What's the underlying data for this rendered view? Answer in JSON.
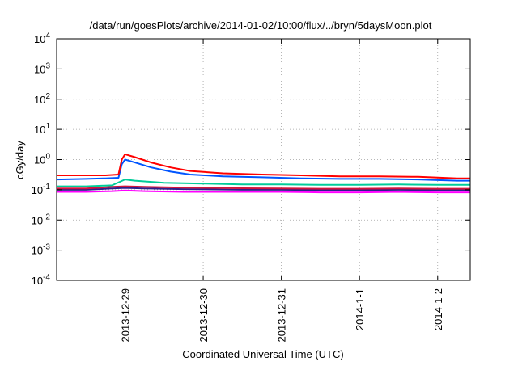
{
  "chart_data": {
    "type": "line",
    "title": "/data/run/goesPlots/archive/2014-01-02/10:00/flux/../bryn/5daysMoon.plot",
    "xlabel": "Coordinated Universal Time (UTC)",
    "ylabel": "cGy/day",
    "y_scale": "log",
    "ylim": [
      0.0001,
      10000
    ],
    "xlim": [
      "2013-12-28 03:00",
      "2014-01-02 10:00"
    ],
    "x_ticks": [
      {
        "value": "2013-12-29 00:00",
        "label": "2013-12-29"
      },
      {
        "value": "2013-12-30 00:00",
        "label": "2013-12-30"
      },
      {
        "value": "2013-12-31 00:00",
        "label": "2013-12-31"
      },
      {
        "value": "2014-01-01 00:00",
        "label": "2014-1-1"
      },
      {
        "value": "2014-01-02 00:00",
        "label": "2014-1-2"
      }
    ],
    "y_ticks": [
      {
        "value": 0.0001,
        "base": "10",
        "exp": "-4"
      },
      {
        "value": 0.001,
        "base": "10",
        "exp": "-3"
      },
      {
        "value": 0.01,
        "base": "10",
        "exp": "-2"
      },
      {
        "value": 0.1,
        "base": "10",
        "exp": "-1"
      },
      {
        "value": 1,
        "base": "10",
        "exp": "0"
      },
      {
        "value": 10,
        "base": "10",
        "exp": "1"
      },
      {
        "value": 100,
        "base": "10",
        "exp": "2"
      },
      {
        "value": 1000,
        "base": "10",
        "exp": "3"
      },
      {
        "value": 10000,
        "base": "10",
        "exp": "4"
      }
    ],
    "grid": true,
    "legend": false,
    "series": [
      {
        "color": "#ff00ff",
        "points": [
          [
            "2013-12-28 03:00",
            0.085
          ],
          [
            "2013-12-28 12:00",
            0.085
          ],
          [
            "2013-12-28 20:00",
            0.09
          ],
          [
            "2013-12-29 00:00",
            0.095
          ],
          [
            "2013-12-29 06:00",
            0.09
          ],
          [
            "2013-12-29 18:00",
            0.085
          ],
          [
            "2013-12-30 12:00",
            0.085
          ],
          [
            "2013-12-31 00:00",
            0.085
          ],
          [
            "2013-12-31 12:00",
            0.082
          ],
          [
            "2014-01-01 00:00",
            0.082
          ],
          [
            "2014-01-01 12:00",
            0.085
          ],
          [
            "2014-01-02 00:00",
            0.082
          ],
          [
            "2014-01-02 10:00",
            0.082
          ]
        ]
      },
      {
        "color": "#2d1e8c",
        "points": [
          [
            "2013-12-28 03:00",
            0.1
          ],
          [
            "2013-12-28 12:00",
            0.1
          ],
          [
            "2013-12-28 20:00",
            0.11
          ],
          [
            "2013-12-29 00:00",
            0.115
          ],
          [
            "2013-12-29 06:00",
            0.11
          ],
          [
            "2013-12-29 18:00",
            0.105
          ],
          [
            "2013-12-30 12:00",
            0.1
          ],
          [
            "2013-12-31 00:00",
            0.1
          ],
          [
            "2013-12-31 12:00",
            0.098
          ],
          [
            "2014-01-01 00:00",
            0.098
          ],
          [
            "2014-01-01 12:00",
            0.1
          ],
          [
            "2014-01-02 00:00",
            0.098
          ],
          [
            "2014-01-02 10:00",
            0.098
          ]
        ]
      },
      {
        "color": "#d2143c",
        "points": [
          [
            "2013-12-28 03:00",
            0.11
          ],
          [
            "2013-12-28 12:00",
            0.11
          ],
          [
            "2013-12-28 20:00",
            0.125
          ],
          [
            "2013-12-29 00:00",
            0.13
          ],
          [
            "2013-12-29 06:00",
            0.125
          ],
          [
            "2013-12-29 18:00",
            0.118
          ],
          [
            "2013-12-30 12:00",
            0.112
          ],
          [
            "2013-12-31 00:00",
            0.11
          ],
          [
            "2013-12-31 12:00",
            0.108
          ],
          [
            "2014-01-01 00:00",
            0.108
          ],
          [
            "2014-01-01 12:00",
            0.11
          ],
          [
            "2014-01-02 00:00",
            0.108
          ],
          [
            "2014-01-02 10:00",
            0.108
          ]
        ]
      },
      {
        "color": "#00cc99",
        "points": [
          [
            "2013-12-28 03:00",
            0.13
          ],
          [
            "2013-12-28 12:00",
            0.13
          ],
          [
            "2013-12-28 20:00",
            0.14
          ],
          [
            "2013-12-29 00:00",
            0.22
          ],
          [
            "2013-12-29 03:00",
            0.2
          ],
          [
            "2013-12-29 12:00",
            0.17
          ],
          [
            "2013-12-30 00:00",
            0.16
          ],
          [
            "2013-12-30 12:00",
            0.15
          ],
          [
            "2013-12-31 00:00",
            0.15
          ],
          [
            "2013-12-31 12:00",
            0.145
          ],
          [
            "2014-01-01 00:00",
            0.145
          ],
          [
            "2014-01-01 12:00",
            0.15
          ],
          [
            "2014-01-02 00:00",
            0.145
          ],
          [
            "2014-01-02 10:00",
            0.145
          ]
        ]
      },
      {
        "color": "#0055ff",
        "points": [
          [
            "2013-12-28 03:00",
            0.22
          ],
          [
            "2013-12-28 12:00",
            0.23
          ],
          [
            "2013-12-28 18:00",
            0.24
          ],
          [
            "2013-12-28 22:00",
            0.25
          ],
          [
            "2013-12-28 23:00",
            0.7
          ],
          [
            "2013-12-29 00:00",
            1.0
          ],
          [
            "2013-12-29 03:00",
            0.8
          ],
          [
            "2013-12-29 08:00",
            0.55
          ],
          [
            "2013-12-29 14:00",
            0.4
          ],
          [
            "2013-12-29 20:00",
            0.32
          ],
          [
            "2013-12-30 06:00",
            0.28
          ],
          [
            "2013-12-30 18:00",
            0.26
          ],
          [
            "2013-12-31 06:00",
            0.24
          ],
          [
            "2013-12-31 18:00",
            0.23
          ],
          [
            "2014-01-01 06:00",
            0.23
          ],
          [
            "2014-01-01 18:00",
            0.22
          ],
          [
            "2014-01-02 06:00",
            0.2
          ],
          [
            "2014-01-02 10:00",
            0.2
          ]
        ]
      },
      {
        "color": "#ff0000",
        "points": [
          [
            "2013-12-28 03:00",
            0.3
          ],
          [
            "2013-12-28 12:00",
            0.3
          ],
          [
            "2013-12-28 18:00",
            0.3
          ],
          [
            "2013-12-28 22:00",
            0.32
          ],
          [
            "2013-12-28 23:00",
            1.0
          ],
          [
            "2013-12-29 00:00",
            1.5
          ],
          [
            "2013-12-29 03:00",
            1.2
          ],
          [
            "2013-12-29 08:00",
            0.8
          ],
          [
            "2013-12-29 14:00",
            0.55
          ],
          [
            "2013-12-29 20:00",
            0.42
          ],
          [
            "2013-12-30 06:00",
            0.35
          ],
          [
            "2013-12-30 18:00",
            0.32
          ],
          [
            "2013-12-31 06:00",
            0.3
          ],
          [
            "2013-12-31 18:00",
            0.28
          ],
          [
            "2014-01-01 06:00",
            0.28
          ],
          [
            "2014-01-01 18:00",
            0.27
          ],
          [
            "2014-01-02 06:00",
            0.24
          ],
          [
            "2014-01-02 10:00",
            0.24
          ]
        ]
      }
    ]
  }
}
